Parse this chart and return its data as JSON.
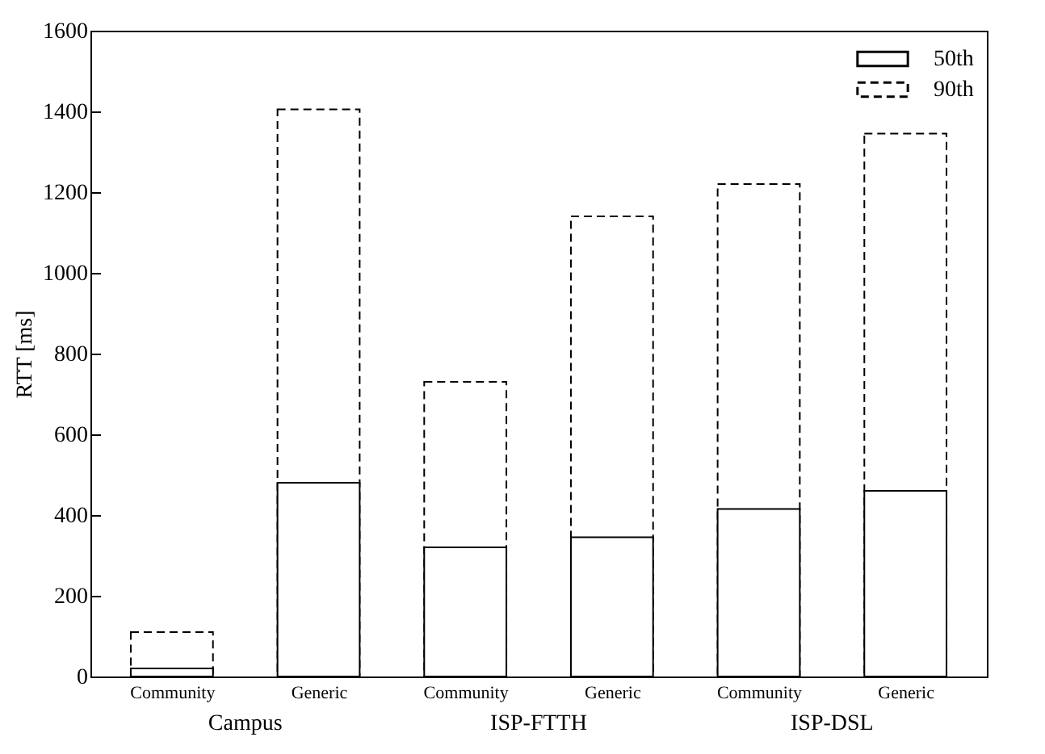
{
  "chart_data": {
    "type": "bar",
    "ylabel": "RTT [ms]",
    "categories": [
      "Community",
      "Generic",
      "Community",
      "Generic",
      "Community",
      "Generic"
    ],
    "series": [
      {
        "name": "50th",
        "color": "#000000",
        "line_style": "solid",
        "values": [
          20,
          480,
          320,
          345,
          415,
          460
        ]
      },
      {
        "name": "90th",
        "color": "#000000",
        "line_style": "dashed",
        "values": [
          110,
          1405,
          730,
          1140,
          1220,
          1345
        ]
      }
    ],
    "annotations": [
      "Campus",
      "ISP-FTTH",
      "ISP-DSL"
    ],
    "ylim": [
      0,
      1600
    ],
    "yticks": [
      0,
      200,
      400,
      600,
      800,
      1000,
      1200,
      1400,
      1600
    ],
    "grid": false,
    "legend": "top right"
  }
}
